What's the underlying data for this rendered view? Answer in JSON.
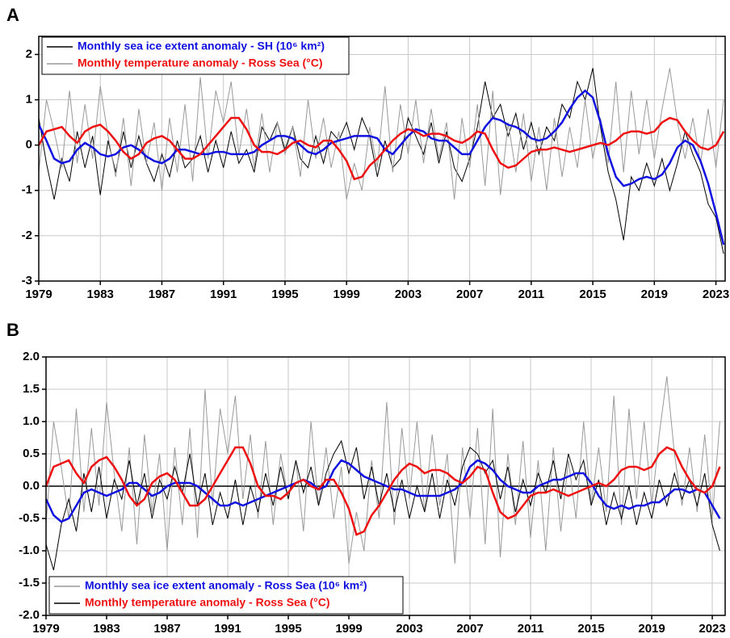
{
  "chart_data": [
    {
      "type": "line",
      "panel_label": "A",
      "legend": "upper left",
      "grid": true,
      "zero_line": false,
      "xlim": [
        1979,
        2023.6
      ],
      "xticks": [
        1979,
        1983,
        1987,
        1991,
        1995,
        1999,
        2003,
        2007,
        2011,
        2015,
        2019,
        2023
      ],
      "ylim": [
        -3,
        2.4
      ],
      "yticks": [
        -3,
        -2,
        -1,
        0,
        1,
        2
      ],
      "x": [
        1979,
        1979.5,
        1980,
        1980.5,
        1981,
        1981.5,
        1982,
        1982.5,
        1983,
        1983.5,
        1984,
        1984.5,
        1985,
        1985.5,
        1986,
        1986.5,
        1987,
        1987.5,
        1988,
        1988.5,
        1989,
        1989.5,
        1990,
        1990.5,
        1991,
        1991.5,
        1992,
        1992.5,
        1993,
        1993.5,
        1994,
        1994.5,
        1995,
        1995.5,
        1996,
        1996.5,
        1997,
        1997.5,
        1998,
        1998.5,
        1999,
        1999.5,
        2000,
        2000.5,
        2001,
        2001.5,
        2002,
        2002.5,
        2003,
        2003.5,
        2004,
        2004.5,
        2005,
        2005.5,
        2006,
        2006.5,
        2007,
        2007.5,
        2008,
        2008.5,
        2009,
        2009.5,
        2010,
        2010.5,
        2011,
        2011.5,
        2012,
        2012.5,
        2013,
        2013.5,
        2014,
        2014.5,
        2015,
        2015.5,
        2016,
        2016.5,
        2017,
        2017.5,
        2018,
        2018.5,
        2019,
        2019.5,
        2020,
        2020.5,
        2021,
        2021.5,
        2022,
        2022.5,
        2023,
        2023.5
      ],
      "series": [
        {
          "name": "Monthly sea ice extent anomaly - SH (10⁶ km²)",
          "color": "#000000",
          "values": [
            0.6,
            -0.4,
            -1.2,
            -0.3,
            -0.8,
            0.3,
            -0.5,
            0.2,
            -1.1,
            0.1,
            -0.6,
            0.3,
            -0.5,
            0.2,
            -0.4,
            -0.8,
            -0.2,
            -0.7,
            0.1,
            -0.5,
            -0.3,
            0.2,
            -0.6,
            0.1,
            -0.5,
            0.3,
            -0.4,
            -0.1,
            -0.6,
            0.4,
            0.1,
            0.5,
            -0.1,
            0.4,
            -0.3,
            -0.5,
            0.2,
            -0.4,
            0.3,
            0.1,
            0.5,
            -0.1,
            0.6,
            0.2,
            -0.7,
            0.1,
            -0.5,
            -0.3,
            0.6,
            0.2,
            -0.2,
            0.5,
            -0.4,
            0.3,
            -0.5,
            -0.8,
            -0.3,
            0.4,
            1.4,
            0.6,
            0.9,
            0.2,
            0.7,
            -0.1,
            0.5,
            -0.2,
            0.4,
            0.1,
            0.9,
            0.6,
            1.4,
            1.0,
            1.7,
            0.4,
            -0.6,
            -1.2,
            -2.1,
            -0.7,
            -1.0,
            -0.4,
            -0.9,
            -0.3,
            -1.0,
            -0.4,
            0.3,
            -0.2,
            -0.6,
            -1.3,
            -1.6,
            -2.4
          ],
          "trend": {
            "color": "#1010e0",
            "values": [
              0.45,
              0.1,
              -0.3,
              -0.4,
              -0.35,
              -0.1,
              0.05,
              -0.05,
              -0.2,
              -0.25,
              -0.2,
              -0.05,
              0.0,
              -0.1,
              -0.25,
              -0.35,
              -0.4,
              -0.3,
              -0.1,
              -0.1,
              -0.15,
              -0.2,
              -0.2,
              -0.15,
              -0.15,
              -0.2,
              -0.2,
              -0.2,
              -0.15,
              0.0,
              0.1,
              0.2,
              0.2,
              0.15,
              0.0,
              -0.15,
              -0.2,
              -0.1,
              0.05,
              0.1,
              0.15,
              0.2,
              0.2,
              0.2,
              0.15,
              -0.1,
              -0.2,
              0.0,
              0.2,
              0.35,
              0.3,
              0.15,
              0.1,
              0.1,
              -0.05,
              -0.2,
              -0.2,
              0.1,
              0.4,
              0.6,
              0.55,
              0.45,
              0.4,
              0.3,
              0.15,
              0.1,
              0.15,
              0.3,
              0.5,
              0.8,
              1.05,
              1.2,
              1.05,
              0.5,
              -0.2,
              -0.7,
              -0.9,
              -0.85,
              -0.75,
              -0.7,
              -0.75,
              -0.65,
              -0.4,
              -0.05,
              0.1,
              0.0,
              -0.35,
              -0.85,
              -1.5,
              -2.2
            ]
          }
        },
        {
          "name": "Monthly temperature anomaly - Ross Sea (°C)",
          "color": "#999999",
          "values": [
            -0.6,
            1.0,
            0.3,
            -0.5,
            1.2,
            -0.4,
            0.9,
            -0.3,
            1.3,
            0.2,
            -0.7,
            0.6,
            -0.9,
            0.8,
            -0.4,
            0.5,
            -1.0,
            0.6,
            -0.6,
            0.9,
            -0.8,
            1.5,
            -0.3,
            1.2,
            0.5,
            1.4,
            -0.2,
            0.8,
            -0.5,
            0.7,
            -0.6,
            0.5,
            -0.2,
            0.4,
            -0.7,
            1.0,
            -0.3,
            0.6,
            -0.5,
            0.3,
            -1.2,
            -0.4,
            -1.0,
            0.4,
            -0.5,
            1.3,
            -0.6,
            0.9,
            -0.2,
            1.0,
            -0.4,
            0.8,
            -0.3,
            0.5,
            -1.2,
            0.6,
            -0.5,
            0.9,
            -0.9,
            1.2,
            -1.1,
            0.5,
            -0.6,
            0.7,
            -0.8,
            0.4,
            -1.0,
            0.6,
            -0.7,
            0.4,
            -0.5,
            1.0,
            -0.3,
            0.6,
            -0.4,
            1.4,
            -0.6,
            1.2,
            -0.2,
            1.0,
            -0.3,
            0.8,
            1.7,
            0.5,
            -0.3,
            0.6,
            -0.4,
            0.8,
            -0.5,
            1.0
          ],
          "trend": {
            "color": "#ee1111",
            "values": [
              0.0,
              0.3,
              0.35,
              0.4,
              0.2,
              0.05,
              0.3,
              0.4,
              0.45,
              0.3,
              0.1,
              -0.15,
              -0.3,
              -0.2,
              0.05,
              0.15,
              0.2,
              0.1,
              -0.1,
              -0.3,
              -0.3,
              -0.2,
              0.0,
              0.2,
              0.4,
              0.6,
              0.6,
              0.35,
              0.0,
              -0.15,
              -0.15,
              -0.2,
              -0.1,
              0.05,
              0.1,
              0.0,
              -0.05,
              0.1,
              0.1,
              -0.1,
              -0.35,
              -0.75,
              -0.7,
              -0.45,
              -0.3,
              -0.1,
              0.1,
              0.25,
              0.35,
              0.3,
              0.2,
              0.25,
              0.25,
              0.2,
              0.1,
              0.05,
              0.15,
              0.3,
              0.25,
              -0.1,
              -0.4,
              -0.5,
              -0.45,
              -0.3,
              -0.15,
              -0.1,
              -0.1,
              -0.05,
              -0.1,
              -0.15,
              -0.1,
              -0.05,
              0.0,
              0.05,
              0.0,
              0.1,
              0.25,
              0.3,
              0.3,
              0.25,
              0.3,
              0.5,
              0.6,
              0.55,
              0.3,
              0.1,
              -0.05,
              -0.1,
              0.0,
              0.3
            ]
          }
        }
      ]
    },
    {
      "type": "line",
      "panel_label": "B",
      "legend": "lower left",
      "grid": true,
      "zero_line": true,
      "xlim": [
        1979,
        2023.85
      ],
      "xticks": [
        1979,
        1983,
        1987,
        1991,
        1995,
        1999,
        2003,
        2007,
        2011,
        2015,
        2019,
        2023
      ],
      "ylim": [
        -2,
        2
      ],
      "yticks": [
        {
          "value": -2,
          "label": "-2.0"
        },
        -1.5,
        {
          "value": -1,
          "label": "-1.0"
        },
        -0.5,
        {
          "value": 0,
          "label": "0.0"
        },
        0.5,
        {
          "value": 1,
          "label": "1.0"
        },
        1.5,
        {
          "value": 2,
          "label": "2.0"
        }
      ],
      "x": [
        1979,
        1979.5,
        1980,
        1980.5,
        1981,
        1981.5,
        1982,
        1982.5,
        1983,
        1983.5,
        1984,
        1984.5,
        1985,
        1985.5,
        1986,
        1986.5,
        1987,
        1987.5,
        1988,
        1988.5,
        1989,
        1989.5,
        1990,
        1990.5,
        1991,
        1991.5,
        1992,
        1992.5,
        1993,
        1993.5,
        1994,
        1994.5,
        1995,
        1995.5,
        1996,
        1996.5,
        1997,
        1997.5,
        1998,
        1998.5,
        1999,
        1999.5,
        2000,
        2000.5,
        2001,
        2001.5,
        2002,
        2002.5,
        2003,
        2003.5,
        2004,
        2004.5,
        2005,
        2005.5,
        2006,
        2006.5,
        2007,
        2007.5,
        2008,
        2008.5,
        2009,
        2009.5,
        2010,
        2010.5,
        2011,
        2011.5,
        2012,
        2012.5,
        2013,
        2013.5,
        2014,
        2014.5,
        2015,
        2015.5,
        2016,
        2016.5,
        2017,
        2017.5,
        2018,
        2018.5,
        2019,
        2019.5,
        2020,
        2020.5,
        2021,
        2021.5,
        2022,
        2022.5,
        2023,
        2023.5
      ],
      "series": [
        {
          "name": "Monthly sea ice extent anomaly - Ross Sea (10⁶ km²)",
          "color": "#999999",
          "values": [
            -0.6,
            1.0,
            0.3,
            -0.5,
            1.2,
            -0.4,
            0.9,
            -0.3,
            1.3,
            0.2,
            -0.7,
            0.6,
            -0.9,
            0.8,
            -0.4,
            0.5,
            -1.0,
            0.6,
            -0.6,
            0.9,
            -0.8,
            1.5,
            -0.3,
            1.2,
            0.5,
            1.4,
            -0.2,
            0.8,
            -0.5,
            0.7,
            -0.6,
            0.5,
            -0.2,
            0.4,
            -0.7,
            1.0,
            -0.3,
            0.6,
            -0.5,
            0.3,
            -1.2,
            -0.4,
            -1.0,
            0.4,
            -0.5,
            1.3,
            -0.6,
            0.9,
            -0.2,
            1.0,
            -0.4,
            0.8,
            -0.3,
            0.5,
            -1.2,
            0.6,
            -0.5,
            0.9,
            -0.9,
            1.2,
            -1.1,
            0.5,
            -0.6,
            0.7,
            -0.8,
            0.4,
            -1.0,
            0.6,
            -0.7,
            0.4,
            -0.5,
            1.0,
            -0.3,
            0.6,
            -0.4,
            1.4,
            -0.6,
            1.2,
            -0.2,
            1.0,
            -0.3,
            0.8,
            1.7,
            0.5,
            -0.3,
            0.6,
            -0.4,
            0.8,
            -0.5,
            1.0
          ],
          "trend": {
            "color": "#1010e0",
            "values": [
              -0.2,
              -0.45,
              -0.55,
              -0.5,
              -0.3,
              -0.1,
              -0.05,
              -0.1,
              -0.15,
              -0.1,
              -0.05,
              0.05,
              0.05,
              -0.05,
              -0.15,
              -0.1,
              0.0,
              0.05,
              0.05,
              0.05,
              0.0,
              -0.1,
              -0.2,
              -0.3,
              -0.3,
              -0.25,
              -0.3,
              -0.25,
              -0.2,
              -0.15,
              -0.1,
              -0.05,
              0.0,
              0.05,
              0.1,
              0.05,
              -0.05,
              0.0,
              0.25,
              0.4,
              0.35,
              0.25,
              0.15,
              0.1,
              0.05,
              0.0,
              -0.05,
              -0.05,
              -0.1,
              -0.15,
              -0.15,
              -0.15,
              -0.15,
              -0.1,
              -0.05,
              0.05,
              0.3,
              0.4,
              0.35,
              0.25,
              0.1,
              0.0,
              -0.05,
              -0.1,
              -0.1,
              0.0,
              0.05,
              0.1,
              0.1,
              0.15,
              0.2,
              0.2,
              0.05,
              -0.15,
              -0.3,
              -0.35,
              -0.3,
              -0.35,
              -0.3,
              -0.3,
              -0.25,
              -0.25,
              -0.15,
              -0.05,
              -0.05,
              -0.1,
              -0.05,
              -0.1,
              -0.3,
              -0.5
            ]
          }
        },
        {
          "name": "Monthly temperature anomaly - Ross Sea (°C)",
          "color": "#000000",
          "values": [
            -0.9,
            -1.3,
            -0.6,
            -0.2,
            -0.7,
            0.2,
            -0.4,
            0.3,
            -0.5,
            0.1,
            -0.2,
            0.4,
            -0.3,
            0.2,
            -0.5,
            0.1,
            -0.2,
            0.3,
            -0.1,
            0.5,
            -0.3,
            0.2,
            -0.6,
            -0.1,
            -0.5,
            0.1,
            -0.6,
            0.0,
            -0.4,
            0.2,
            -0.3,
            0.3,
            -0.2,
            0.4,
            -0.1,
            0.3,
            -0.3,
            0.2,
            0.5,
            0.7,
            0.2,
            0.6,
            -0.2,
            0.3,
            -0.3,
            0.2,
            -0.4,
            0.1,
            -0.5,
            0.0,
            -0.4,
            0.2,
            -0.5,
            0.1,
            -0.3,
            0.3,
            0.6,
            0.5,
            0.2,
            0.4,
            -0.2,
            0.3,
            -0.4,
            0.1,
            -0.3,
            0.2,
            -0.1,
            0.4,
            -0.2,
            0.5,
            0.1,
            0.4,
            -0.3,
            0.1,
            -0.6,
            -0.1,
            -0.5,
            0.0,
            -0.6,
            -0.1,
            -0.5,
            0.1,
            -0.3,
            0.2,
            -0.2,
            0.1,
            -0.3,
            0.2,
            -0.6,
            -1.0
          ],
          "trend": {
            "color": "#ee1111",
            "values": [
              0.0,
              0.3,
              0.35,
              0.4,
              0.2,
              0.05,
              0.3,
              0.4,
              0.45,
              0.3,
              0.1,
              -0.15,
              -0.3,
              -0.2,
              0.05,
              0.15,
              0.2,
              0.1,
              -0.1,
              -0.3,
              -0.3,
              -0.2,
              0.0,
              0.2,
              0.4,
              0.6,
              0.6,
              0.35,
              0.0,
              -0.15,
              -0.15,
              -0.2,
              -0.1,
              0.05,
              0.1,
              0.0,
              -0.05,
              0.1,
              0.1,
              -0.1,
              -0.35,
              -0.75,
              -0.7,
              -0.45,
              -0.3,
              -0.1,
              0.1,
              0.25,
              0.35,
              0.3,
              0.2,
              0.25,
              0.25,
              0.2,
              0.1,
              0.05,
              0.15,
              0.3,
              0.25,
              -0.1,
              -0.4,
              -0.5,
              -0.45,
              -0.3,
              -0.15,
              -0.1,
              -0.1,
              -0.05,
              -0.1,
              -0.15,
              -0.1,
              -0.05,
              0.0,
              0.05,
              0.0,
              0.1,
              0.25,
              0.3,
              0.3,
              0.25,
              0.3,
              0.5,
              0.6,
              0.55,
              0.3,
              0.1,
              -0.05,
              -0.1,
              0.0,
              0.3
            ]
          }
        }
      ]
    }
  ]
}
